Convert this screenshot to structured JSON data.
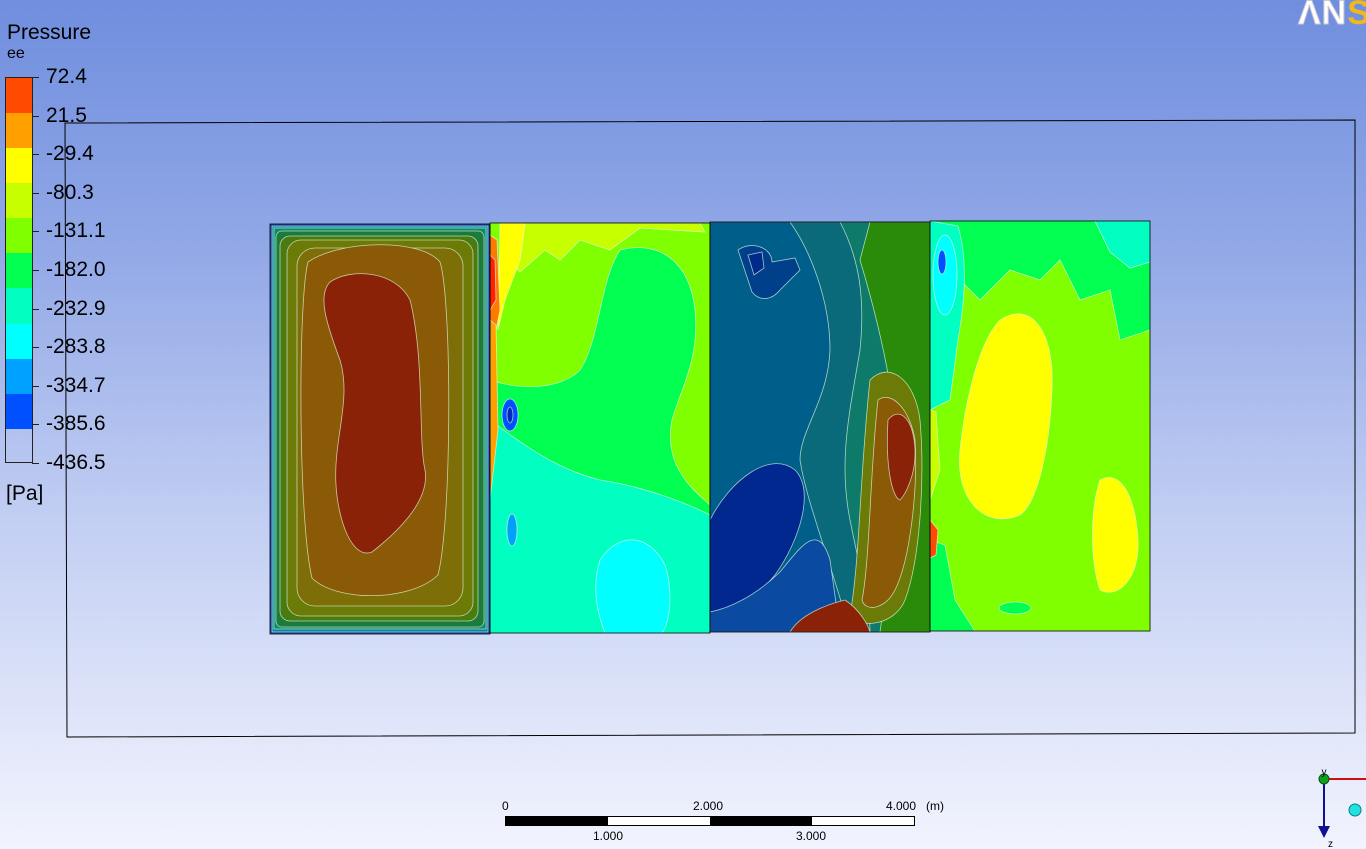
{
  "logo": {
    "text": "ΛN",
    "accent": "S"
  },
  "legend": {
    "title": "Pressure",
    "subtitle": "ee",
    "unit": "[Pa]",
    "levels": [
      "72.4",
      "21.5",
      "-29.4",
      "-80.3",
      "-131.1",
      "-182.0",
      "-232.9",
      "-283.8",
      "-334.7",
      "-385.6",
      "-436.5"
    ],
    "colors": [
      "#ff4a00",
      "#ffa000",
      "#ffff00",
      "#c8ff00",
      "#80ff00",
      "#00ff50",
      "#00ffc0",
      "#00ffff",
      "#00a0ff",
      "#0050ff"
    ]
  },
  "scale": {
    "top_labels": [
      "0",
      "2.000",
      "4.000"
    ],
    "unit": "(m)",
    "bottom_labels": [
      "1.000",
      "3.000"
    ]
  },
  "axes_triad": {
    "labels": [
      "y",
      "z"
    ]
  }
}
